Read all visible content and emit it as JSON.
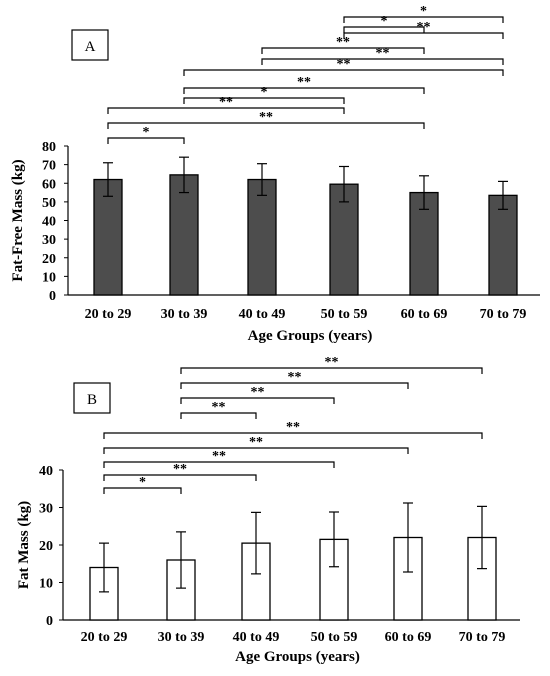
{
  "panels": [
    {
      "panel_label": "A",
      "chart_data": {
        "type": "bar",
        "title": "",
        "xlabel": "Age Groups (years)",
        "ylabel": "Fat-Free Mass (kg)",
        "categories": [
          "20 to 29",
          "30 to 39",
          "40 to 49",
          "50 to 59",
          "60 to 69",
          "70 to 79"
        ],
        "values": [
          62,
          64.5,
          62,
          59.5,
          55,
          53.5
        ],
        "error": [
          9,
          9.5,
          8.5,
          9.5,
          9,
          7.5
        ],
        "ylim": [
          0,
          80
        ],
        "yticks": [
          0,
          10,
          20,
          30,
          40,
          50,
          60,
          70,
          80
        ],
        "bar_color": "#4d4d4d",
        "grid": false,
        "significance": [
          {
            "from": 0,
            "to": 1,
            "label": "*"
          },
          {
            "from": 0,
            "to": 4,
            "label": "**"
          },
          {
            "from": 0,
            "to": 3,
            "label": "**"
          },
          {
            "from": 1,
            "to": 3,
            "label": "*"
          },
          {
            "from": 1,
            "to": 4,
            "label": "**"
          },
          {
            "from": 1,
            "to": 5,
            "label": "**"
          },
          {
            "from": 2,
            "to": 5,
            "label": "**"
          },
          {
            "from": 2,
            "to": 4,
            "label": "**"
          },
          {
            "from": 3,
            "to": 5,
            "label": "**"
          },
          {
            "from": 3,
            "to": 4,
            "label": "*"
          },
          {
            "from": 3,
            "to": 5,
            "label": "*"
          }
        ]
      }
    },
    {
      "panel_label": "B",
      "chart_data": {
        "type": "bar",
        "title": "",
        "xlabel": "Age Groups (years)",
        "ylabel": "Fat Mass (kg)",
        "categories": [
          "20 to 29",
          "30 to 39",
          "40 to 49",
          "50 to 59",
          "60 to 69",
          "70 to 79"
        ],
        "values": [
          14,
          16,
          20.5,
          21.5,
          22,
          22
        ],
        "error": [
          6.5,
          7.5,
          8.2,
          7.3,
          9.2,
          8.3
        ],
        "ylim": [
          0,
          40
        ],
        "yticks": [
          0,
          10,
          20,
          30,
          40
        ],
        "bar_color": "#ffffff",
        "grid": false,
        "significance": [
          {
            "from": 0,
            "to": 1,
            "label": "*"
          },
          {
            "from": 0,
            "to": 2,
            "label": "**"
          },
          {
            "from": 0,
            "to": 3,
            "label": "**"
          },
          {
            "from": 0,
            "to": 4,
            "label": "**"
          },
          {
            "from": 0,
            "to": 5,
            "label": "**"
          },
          {
            "from": 1,
            "to": 2,
            "label": "**"
          },
          {
            "from": 1,
            "to": 3,
            "label": "**"
          },
          {
            "from": 1,
            "to": 4,
            "label": "**"
          },
          {
            "from": 1,
            "to": 5,
            "label": "**"
          }
        ]
      }
    }
  ]
}
